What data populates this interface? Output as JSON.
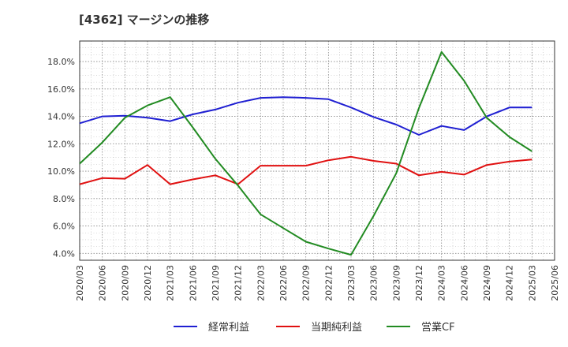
{
  "title": "[4362]  マージンの推移",
  "chart_data": {
    "type": "line",
    "title": "[4362]  マージンの推移",
    "xlabel": "",
    "ylabel": "",
    "x": [
      "2020/03",
      "2020/06",
      "2020/09",
      "2020/12",
      "2021/03",
      "2021/06",
      "2021/09",
      "2021/12",
      "2022/03",
      "2022/06",
      "2022/09",
      "2022/12",
      "2023/03",
      "2023/06",
      "2023/09",
      "2023/12",
      "2024/03",
      "2024/06",
      "2024/09",
      "2024/12",
      "2025/03",
      "2025/06"
    ],
    "y_ticks": [
      "4.0%",
      "6.0%",
      "8.0%",
      "10.0%",
      "12.0%",
      "14.0%",
      "16.0%",
      "18.0%"
    ],
    "ylim": [
      3.5,
      19.5
    ],
    "grid": true,
    "legend_position": "bottom",
    "series": [
      {
        "name": "経常利益",
        "color": "#1f1fd2",
        "values": [
          13.5,
          14.0,
          14.05,
          13.9,
          13.65,
          14.15,
          14.5,
          15.0,
          15.35,
          15.4,
          15.35,
          15.25,
          14.65,
          13.95,
          13.4,
          12.65,
          13.3,
          13.0,
          14.0,
          14.65,
          14.65,
          null
        ]
      },
      {
        "name": "当期純利益",
        "color": "#e01010",
        "values": [
          9.05,
          9.5,
          9.45,
          10.45,
          9.05,
          9.4,
          9.7,
          9.05,
          10.4,
          10.4,
          10.4,
          10.8,
          11.05,
          10.75,
          10.55,
          9.7,
          9.95,
          9.75,
          10.45,
          10.7,
          10.85,
          null
        ]
      },
      {
        "name": "営業CF",
        "color": "#228b22",
        "values": [
          10.55,
          12.1,
          13.9,
          14.8,
          15.4,
          13.2,
          10.9,
          8.95,
          6.85,
          5.85,
          4.85,
          4.35,
          3.9,
          6.75,
          9.85,
          14.6,
          18.7,
          16.6,
          13.9,
          12.5,
          11.45,
          null
        ]
      }
    ]
  }
}
